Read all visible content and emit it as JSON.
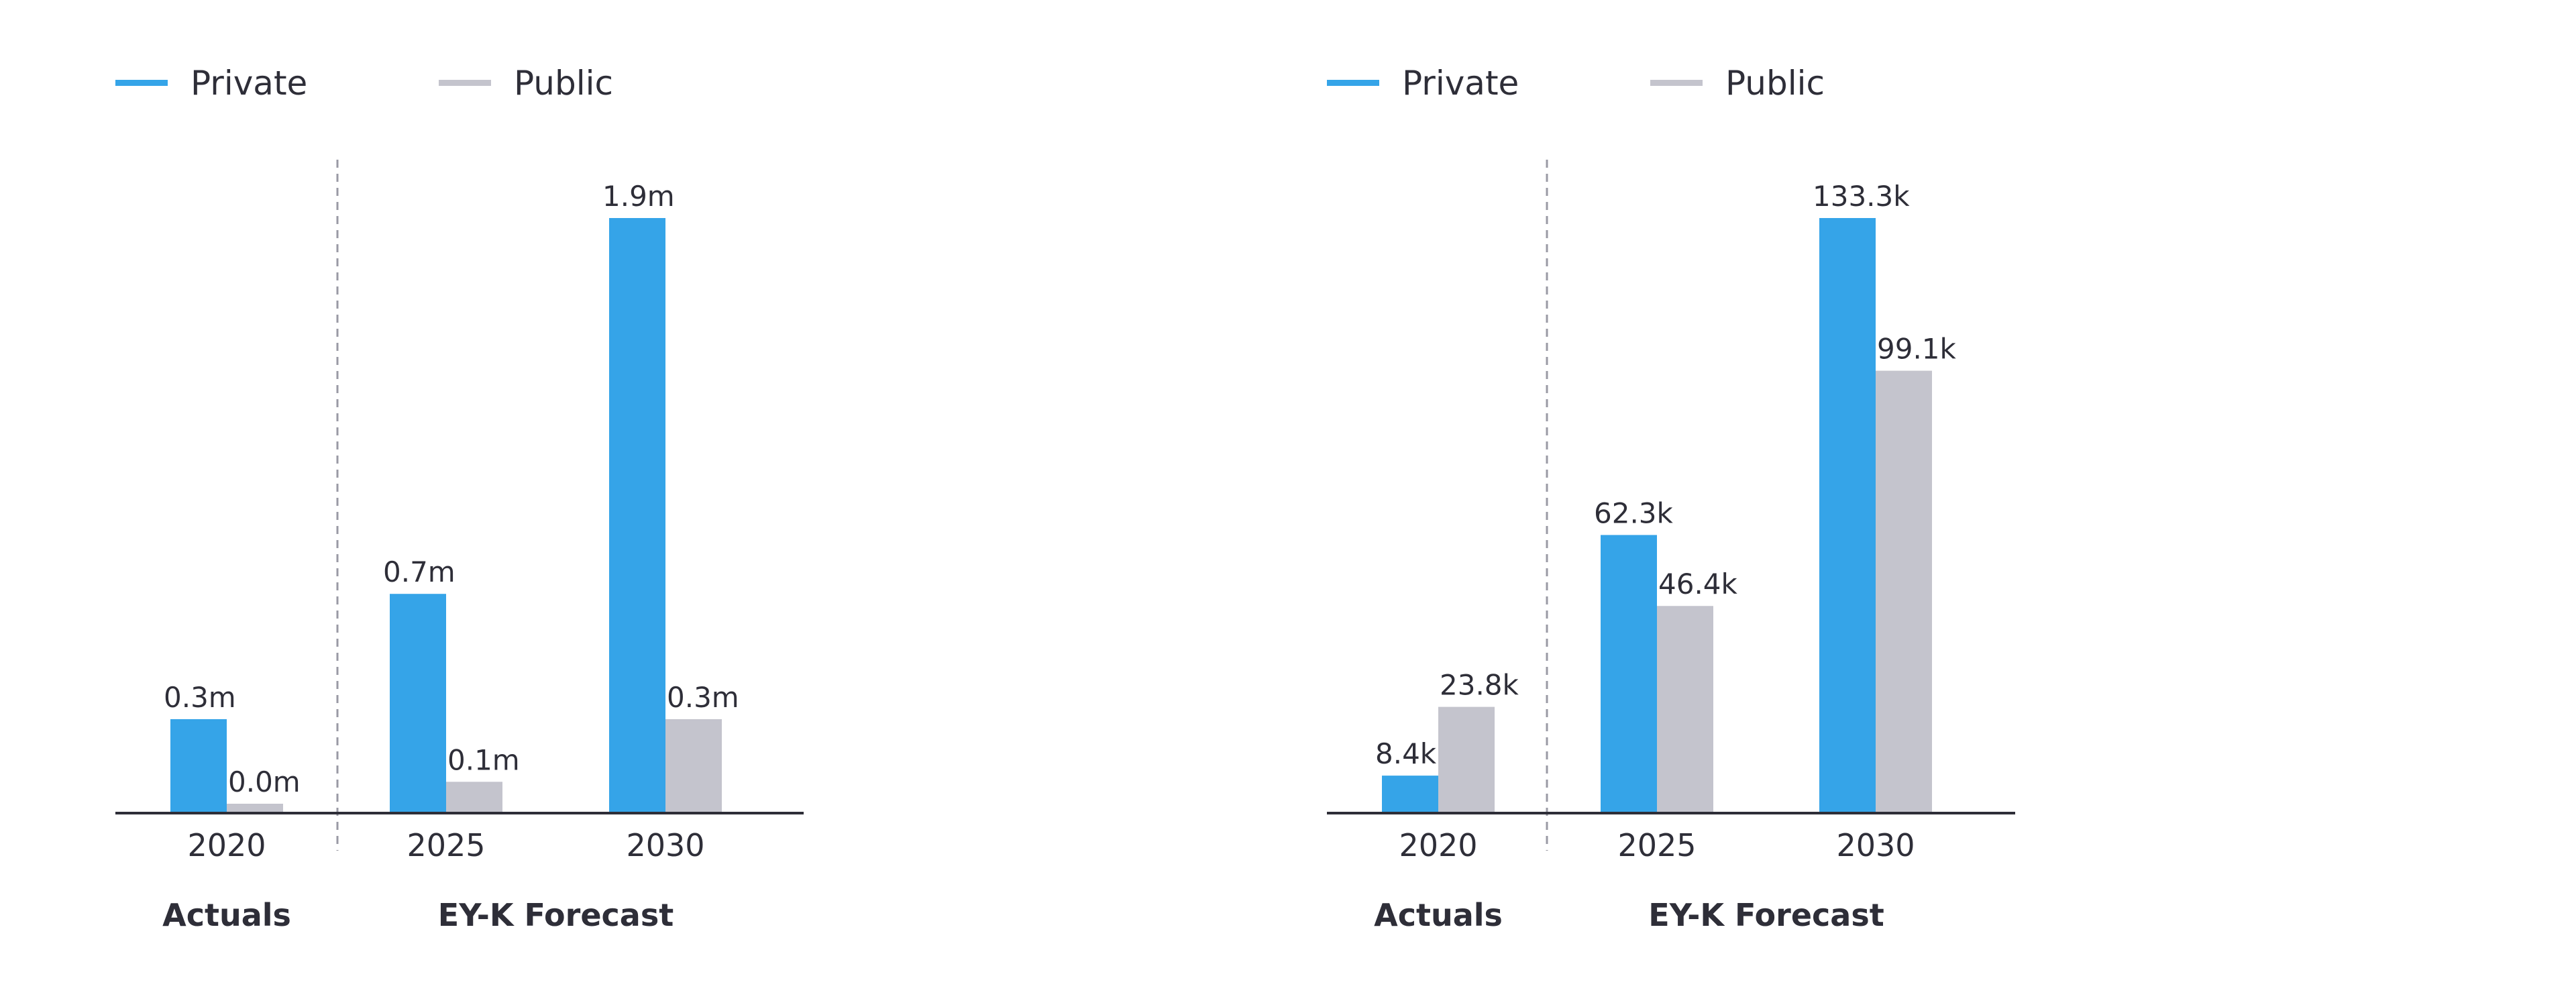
{
  "colors": {
    "private": "#35a4e8",
    "public": "#c4c4cd",
    "axis": "#2e2e38",
    "divider": "#9a9aa4"
  },
  "chart_data": [
    {
      "type": "bar",
      "categories": [
        "2020",
        "2025",
        "2030"
      ],
      "series": [
        {
          "name": "Private",
          "values": [
            0.3,
            0.7,
            1.9
          ],
          "labels": [
            "0.3m",
            "0.7m",
            "1.9m"
          ]
        },
        {
          "name": "Public",
          "values": [
            0.03,
            0.1,
            0.3
          ],
          "labels": [
            "0.0m",
            "0.1m",
            "0.3m"
          ]
        }
      ],
      "groups": [
        {
          "label": "Actuals"
        },
        {
          "label": "EY-K Forecast"
        }
      ],
      "legend_position": "top-left",
      "ylim": [
        0,
        1.9
      ],
      "grid": false
    },
    {
      "type": "bar",
      "categories": [
        "2020",
        "2025",
        "2030"
      ],
      "series": [
        {
          "name": "Private",
          "values": [
            8.4,
            62.3,
            133.3
          ],
          "labels": [
            "8.4k",
            "62.3k",
            "133.3k"
          ]
        },
        {
          "name": "Public",
          "values": [
            23.8,
            46.4,
            99.1
          ],
          "labels": [
            "23.8k",
            "46.4k",
            "99.1k"
          ]
        }
      ],
      "groups": [
        {
          "label": "Actuals"
        },
        {
          "label": "EY-K Forecast"
        }
      ],
      "legend_position": "top-left",
      "ylim": [
        0,
        133.3
      ],
      "grid": false
    }
  ]
}
